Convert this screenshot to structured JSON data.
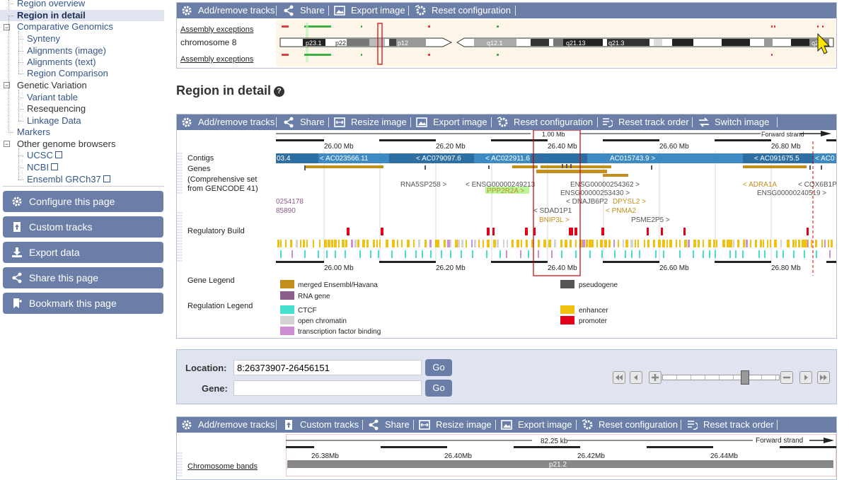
{
  "nav": {
    "items": [
      {
        "label": "Region overview"
      },
      {
        "label": "Region in detail"
      },
      {
        "label": "Comparative Genomics"
      },
      {
        "label": "Synteny"
      },
      {
        "label": "Alignments (image)"
      },
      {
        "label": "Alignments (text)"
      },
      {
        "label": "Region Comparison"
      },
      {
        "label": "Genetic Variation"
      },
      {
        "label": "Variant table"
      },
      {
        "label": "Resequencing"
      },
      {
        "label": "Linkage Data"
      },
      {
        "label": "Markers"
      },
      {
        "label": "Other genome browsers"
      },
      {
        "label": "UCSC"
      },
      {
        "label": "NCBI"
      },
      {
        "label": "Ensembl GRCh37"
      }
    ]
  },
  "side_buttons": {
    "configure": "Configure this page",
    "custom": "Custom tracks",
    "export": "Export data",
    "share": "Share this page",
    "bookmark": "Bookmark this page"
  },
  "toolbar": {
    "add_remove": "Add/remove tracks",
    "share": "Share",
    "export_image": "Export image",
    "reset_config": "Reset configuration",
    "resize_image": "Resize image",
    "reset_order": "Reset track order",
    "switch_image": "Switch image",
    "custom_tracks": "Custom tracks"
  },
  "overview": {
    "assembly_exceptions": "Assembly exceptions",
    "chromosome": "chromosome 8",
    "bands": [
      "p23.1",
      "p22",
      "p12",
      "q12.1",
      "q21.13",
      "q21.3",
      "q24"
    ]
  },
  "region_title": "Region in detail",
  "help_glyph": "?",
  "detail": {
    "span_label": "1.00 Mb",
    "strand": "Forward strand",
    "ticks": [
      "26.00 Mb",
      "26.20 Mb",
      "26.40 Mb",
      "26.60 Mb",
      "26.80 Mb"
    ],
    "track_labels": {
      "contigs": "Contigs",
      "genes": "Genes",
      "genes_sub1": "(Comprehensive set",
      "genes_sub2": "from GENCODE 41)",
      "regulatory": "Regulatory Build",
      "gene_legend": "Gene Legend",
      "reg_legend": "Regulation Legend"
    },
    "contigs": [
      "03.4",
      "< AC023566.11",
      "< AC079097.6",
      "< AC022911.6",
      "AC015743.9 >",
      "< AC091675.5",
      "< AC0"
    ],
    "genes": {
      "g1": "0254178",
      "g2": "85890",
      "g3": "RNA5SP258 >",
      "g4": "< ENSG00000249213",
      "g5": "PPP2R2A >",
      "g6": "ENSG00000254362 >",
      "g7": "ENSG00000253430 >",
      "g8": "< DNAJB6P2",
      "g9": "DPYSL2 >",
      "g10": "< SDAD1P1",
      "g11": "< PNMA2",
      "g12": "BNIP3L >",
      "g13": "PSME2P5 >",
      "g14": "< ADRA1A",
      "g15": "< COX6B1P4",
      "g16": "ENSG00000240519 >"
    },
    "gene_legend": {
      "merged": "merged Ensembl/Havana",
      "rna": "RNA gene",
      "pseudo": "pseudogene"
    },
    "reg_legend": {
      "ctcf": "CTCF",
      "open": "open chromatin",
      "tfb": "transcription factor binding",
      "enhancer": "enhancer",
      "promoter": "promoter"
    }
  },
  "location_form": {
    "location_label": "Location:",
    "location_value": "8:26373907-26456151",
    "gene_label": "Gene:",
    "gene_value": "",
    "go": "Go",
    "slider_level": 0.72
  },
  "bottom": {
    "span_label": "82.25 kb",
    "strand": "Forward strand",
    "ticks": [
      "26.38Mb",
      "26.40Mb",
      "26.42Mb",
      "26.44Mb"
    ],
    "chrom_bands": "Chromosome bands",
    "band": "p21.2"
  },
  "colors": {
    "toolbar": "#6a7ea8",
    "contig": "#3e8bc3",
    "merged_gene": "#c28f1c",
    "rna_gene": "#8a5d8a",
    "pseudogene": "#555555",
    "ctcf": "#47e0cf",
    "open_chromatin": "#d3d3d3",
    "tfb": "#cc8fd1",
    "enhancer": "#f0c20f",
    "promoter": "#e2001a",
    "highlight_red": "#cc0000"
  }
}
